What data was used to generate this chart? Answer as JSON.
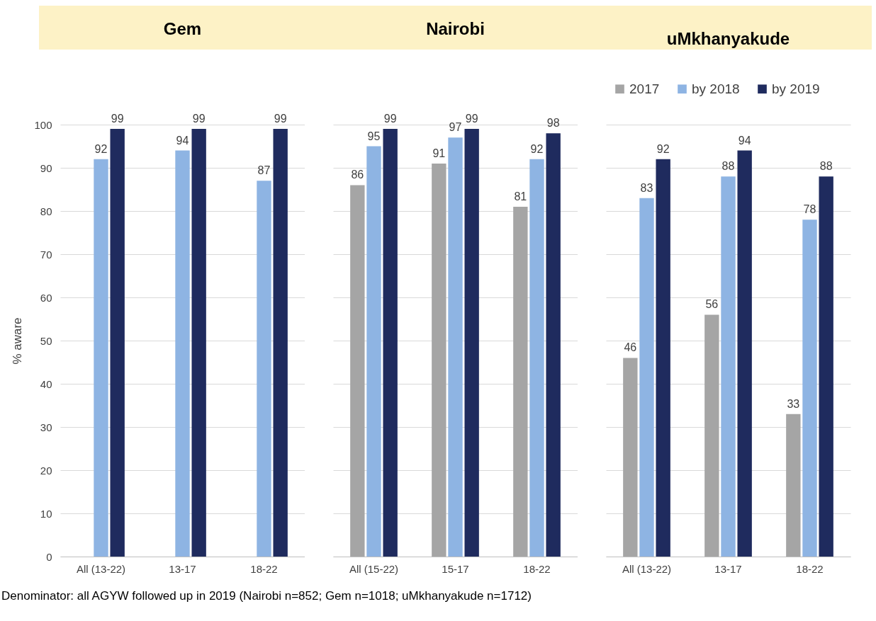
{
  "chart_data": [
    {
      "type": "bar",
      "title": "Gem",
      "ylabel": "% aware",
      "categories": [
        "All (13-22)",
        "13-17",
        "18-22"
      ],
      "series": [
        {
          "color": "#a5a5a5",
          "values": [
            null,
            null,
            null
          ]
        },
        {
          "color": "#8eb4e3",
          "values": [
            92,
            94,
            87
          ]
        },
        {
          "color": "#1f2b5e",
          "values": [
            99,
            99,
            99
          ]
        }
      ],
      "ylim": [
        0,
        100
      ],
      "yticks": [
        0,
        10,
        20,
        30,
        40,
        50,
        60,
        70,
        80,
        90,
        100
      ],
      "grid": "y",
      "data_labels": true,
      "legend": false,
      "annotations": [
        "Denominator: all AGYW  followed up in 2019 (Nairobi n=852; Gem n=1018; uMkhanyakude n=1712)"
      ]
    },
    {
      "type": "bar",
      "title": "Nairobi",
      "categories": [
        "All (15-22)",
        "15-17",
        "18-22"
      ],
      "series": [
        {
          "color": "#a5a5a5",
          "values": [
            86,
            91,
            81
          ]
        },
        {
          "color": "#8eb4e3",
          "values": [
            95,
            97,
            92
          ]
        },
        {
          "color": "#1f2b5e",
          "values": [
            99,
            99,
            98
          ]
        }
      ],
      "ylim": [
        0,
        100
      ],
      "yticks": [
        0,
        10,
        20,
        30,
        40,
        50,
        60,
        70,
        80,
        90,
        100
      ],
      "grid": "y",
      "data_labels": true,
      "legend": false,
      "tick_labels": "x"
    },
    {
      "type": "bar",
      "title": "uMkhanyakude",
      "categories": [
        "All (13-22)",
        "13-17",
        "18-22"
      ],
      "series": [
        {
          "name": "2017",
          "color": "#a5a5a5",
          "values": [
            46,
            56,
            33
          ]
        },
        {
          "name": "by 2018",
          "color": "#8eb4e3",
          "values": [
            83,
            88,
            78
          ]
        },
        {
          "name": "by 2019",
          "color": "#1f2b5e",
          "values": [
            92,
            94,
            88
          ]
        }
      ],
      "ylim": [
        0,
        100
      ],
      "yticks": [
        0,
        10,
        20,
        30,
        40,
        50,
        60,
        70,
        80,
        90,
        100
      ],
      "grid": "y",
      "data_labels": true,
      "legend": "top right",
      "tick_labels": "x"
    }
  ]
}
